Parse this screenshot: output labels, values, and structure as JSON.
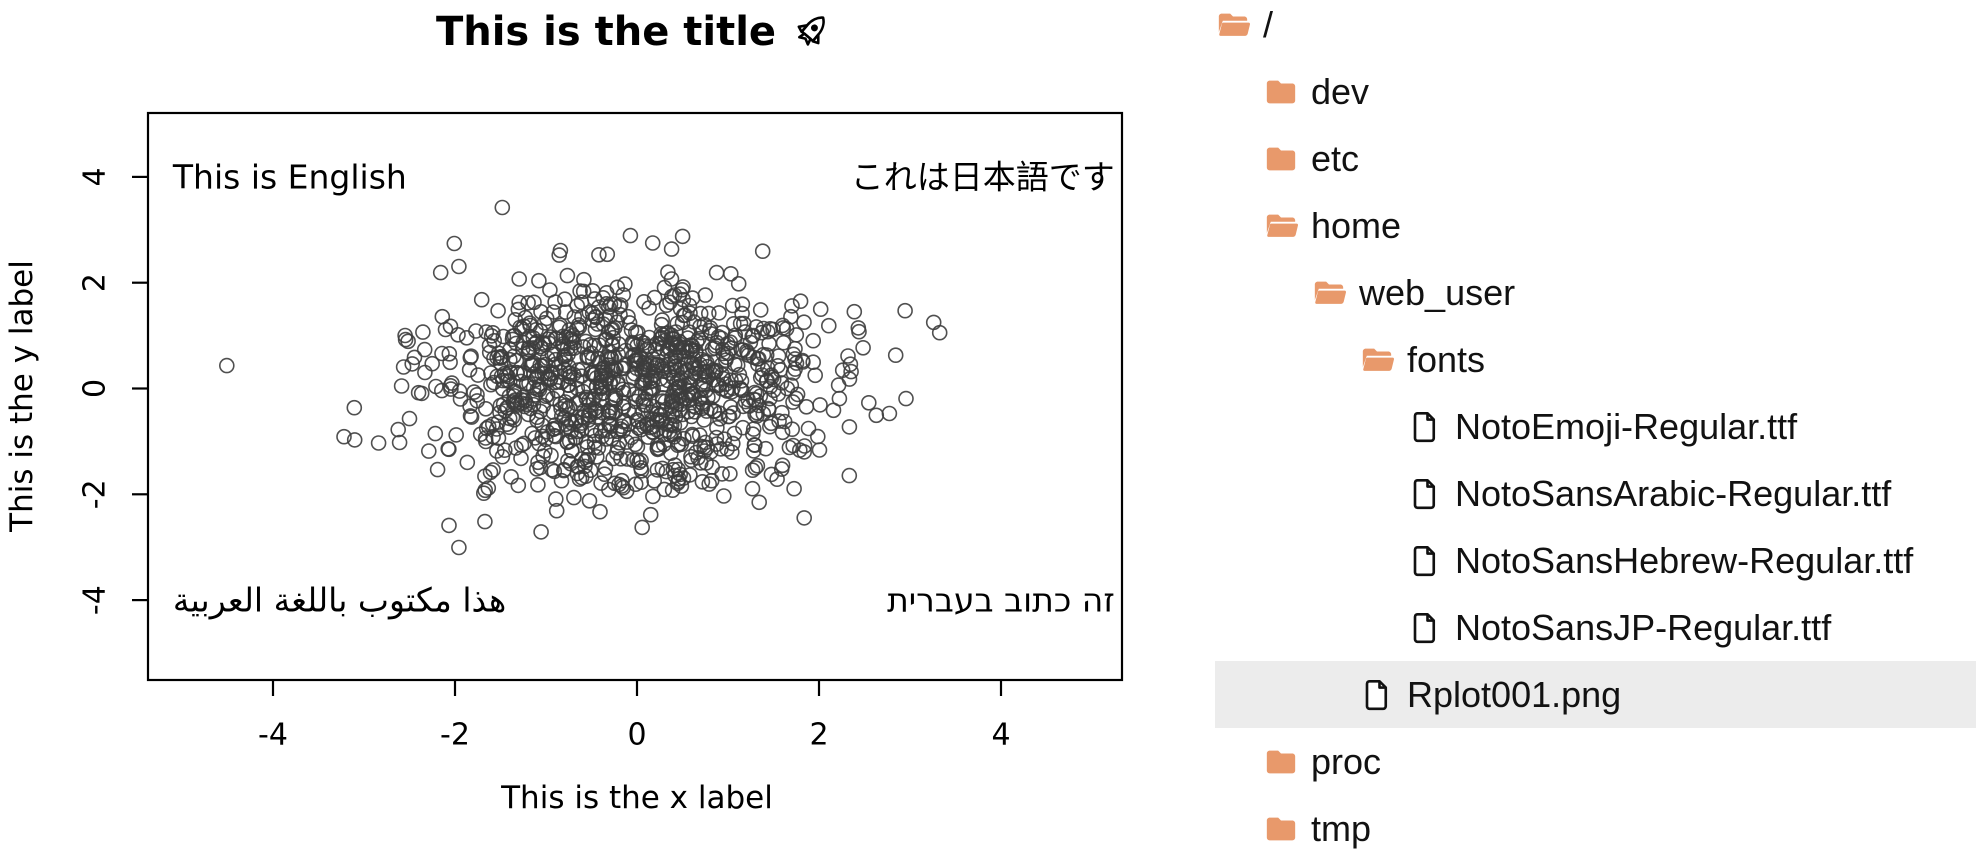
{
  "plot": {
    "title_text": "This is the title",
    "title_emoji": "rocket",
    "xlabel": "This is the x label",
    "ylabel": "This is the y label"
  },
  "chart_data": {
    "type": "scatter",
    "title": "This is the title 🚀",
    "xlabel": "This is the x label",
    "ylabel": "This is the y label",
    "xlim": [
      -5.4,
      5.4
    ],
    "ylim": [
      -5.4,
      5.4
    ],
    "x_ticks": [
      -4,
      -2,
      0,
      2,
      4
    ],
    "y_ticks": [
      -4,
      -2,
      0,
      2,
      4
    ],
    "grid": false,
    "box": true,
    "marker": "open-circle",
    "marker_color": "#3D3D3D",
    "points": {
      "distribution": "bivariate-normal",
      "n": 1100,
      "mean_x": -0.1,
      "mean_y": 0,
      "sd_x": 1.05,
      "sd_y": 1.0,
      "seed": 1337
    },
    "annotations": [
      {
        "text": "This is English",
        "x": -5.1,
        "y": 4,
        "align": "left",
        "lang": "en"
      },
      {
        "text": "これは日本語です",
        "x": 5.25,
        "y": 4,
        "align": "right",
        "lang": "ja"
      },
      {
        "text": "هذا مكتوب باللغة العربية",
        "x": -5.1,
        "y": -4,
        "align": "left",
        "lang": "ar"
      },
      {
        "text": "זה כתוב בעברית",
        "x": 5.25,
        "y": -4,
        "align": "right",
        "lang": "he"
      }
    ]
  },
  "file_tree": {
    "colors": {
      "folder": "#E8996B",
      "selected_bg": "#ECECEC",
      "text": "#121212"
    },
    "items": [
      {
        "label": "/",
        "icon": "folder-open",
        "level": 0,
        "selected": false
      },
      {
        "label": "dev",
        "icon": "folder",
        "level": 1,
        "selected": false
      },
      {
        "label": "etc",
        "icon": "folder",
        "level": 1,
        "selected": false
      },
      {
        "label": "home",
        "icon": "folder-open",
        "level": 1,
        "selected": false
      },
      {
        "label": "web_user",
        "icon": "folder-open",
        "level": 2,
        "selected": false
      },
      {
        "label": "fonts",
        "icon": "folder-open",
        "level": 3,
        "selected": false
      },
      {
        "label": "NotoEmoji-Regular.ttf",
        "icon": "file",
        "level": 4,
        "selected": false
      },
      {
        "label": "NotoSansArabic-Regular.ttf",
        "icon": "file",
        "level": 4,
        "selected": false
      },
      {
        "label": "NotoSansHebrew-Regular.ttf",
        "icon": "file",
        "level": 4,
        "selected": false
      },
      {
        "label": "NotoSansJP-Regular.ttf",
        "icon": "file",
        "level": 4,
        "selected": false
      },
      {
        "label": "Rplot001.png",
        "icon": "file",
        "level": 3,
        "selected": true
      },
      {
        "label": "proc",
        "icon": "folder",
        "level": 1,
        "selected": false
      },
      {
        "label": "tmp",
        "icon": "folder",
        "level": 1,
        "selected": false
      }
    ]
  }
}
